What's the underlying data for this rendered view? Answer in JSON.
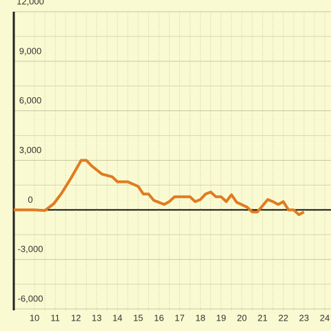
{
  "chart_data": {
    "type": "line",
    "x": [
      9.0,
      10.0,
      10.5,
      10.93,
      11.3,
      11.75,
      12.25,
      12.5,
      12.75,
      13.0,
      13.25,
      13.75,
      14.0,
      14.5,
      15.0,
      15.25,
      15.5,
      15.75,
      16.25,
      16.5,
      16.75,
      17.5,
      17.75,
      18.0,
      18.25,
      18.5,
      18.75,
      19.0,
      19.25,
      19.5,
      19.75,
      20.25,
      20.5,
      20.75,
      21.0,
      21.25,
      21.5,
      21.75,
      22.0,
      22.25,
      22.5,
      22.75,
      23.0
    ],
    "series": [
      {
        "color": "#e07b20",
        "values": [
          0,
          0,
          -40,
          375,
          1000,
          1900,
          3000,
          3000,
          2670,
          2420,
          2170,
          2000,
          1700,
          1700,
          1420,
          960,
          960,
          580,
          330,
          500,
          790,
          790,
          500,
          625,
          960,
          1080,
          790,
          790,
          500,
          920,
          460,
          170,
          -125,
          -125,
          250,
          625,
          500,
          330,
          500,
          0,
          0,
          -290,
          -125
        ]
      }
    ],
    "xlim": [
      9,
      24.3
    ],
    "xticks": [
      10,
      11,
      12,
      13,
      14,
      15,
      16,
      17,
      18,
      19,
      20,
      21,
      22,
      23,
      24
    ],
    "ylim": [
      -6500,
      12000
    ],
    "yticks": [
      {
        "value": -6000,
        "label": "-6,000"
      },
      {
        "value": -3000,
        "label": "-3,000"
      },
      0,
      {
        "value": 3000,
        "label": "3,000"
      },
      {
        "value": 6000,
        "label": "6,000"
      },
      {
        "value": 9000,
        "label": "9,000"
      },
      {
        "value": 12000,
        "label": "12,000"
      }
    ],
    "grid": true
  }
}
